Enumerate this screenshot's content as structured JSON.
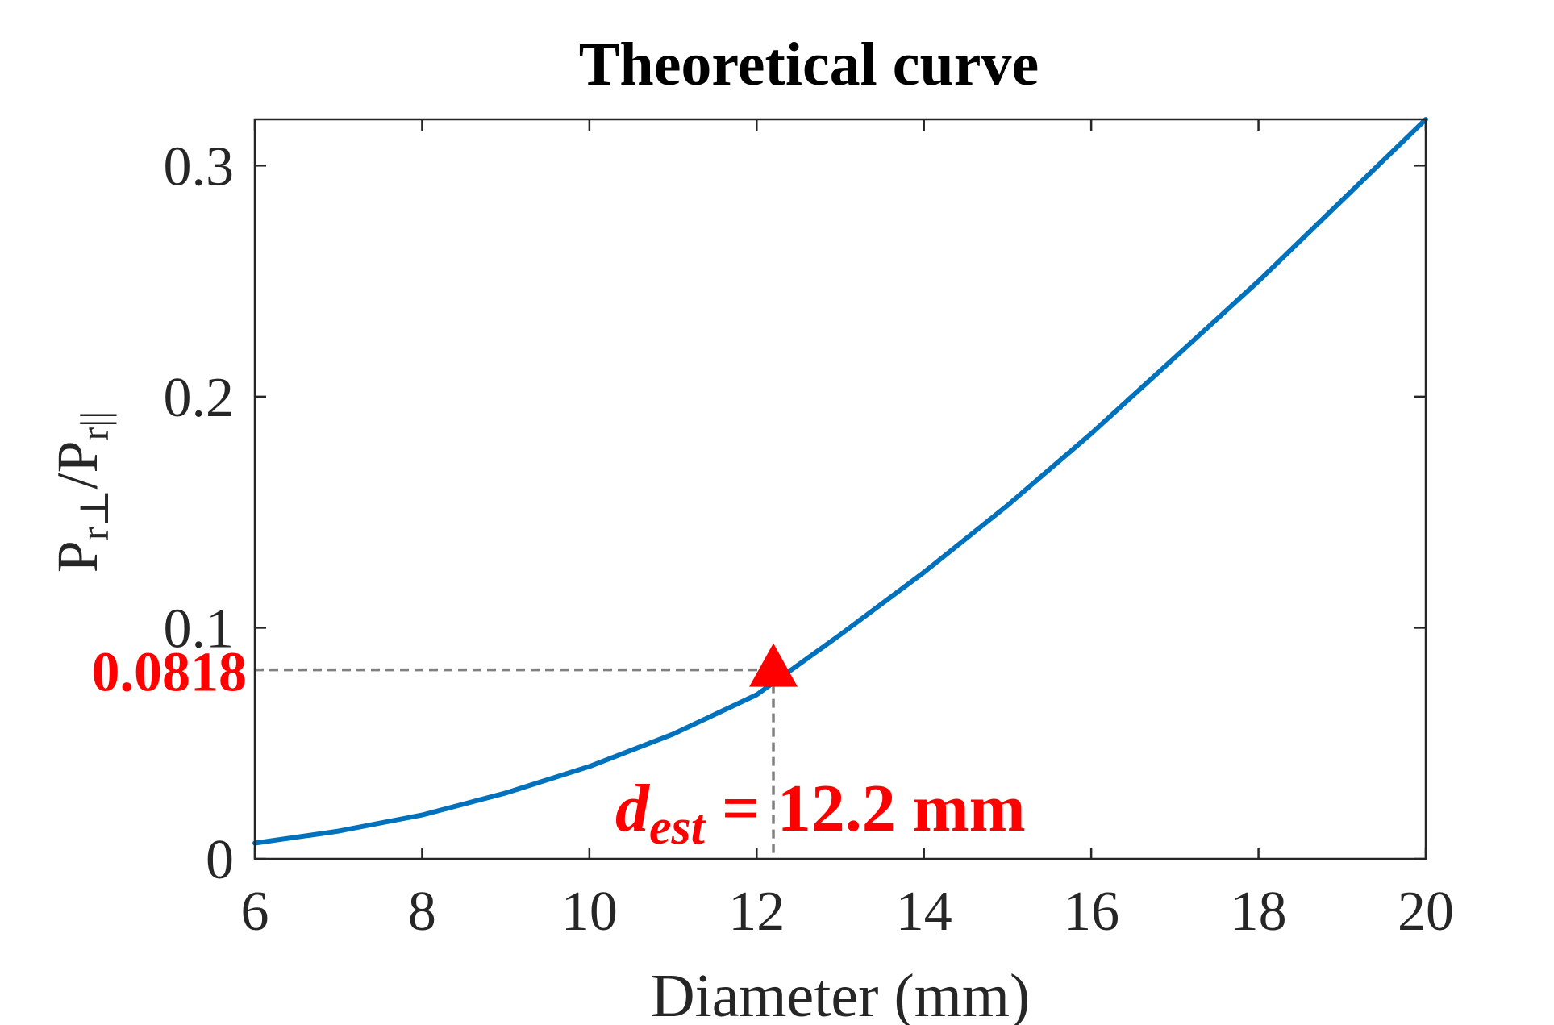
{
  "chart_data": {
    "type": "line",
    "title": "Theoretical curve",
    "xlabel": "Diameter (mm)",
    "ylabel": {
      "p1": "P",
      "sub1": "r⊥",
      "mid": "/P",
      "sub2": "r||"
    },
    "xlim": [
      6,
      20
    ],
    "ylim": [
      0,
      0.32
    ],
    "xticks": [
      6,
      8,
      10,
      12,
      14,
      16,
      18,
      20
    ],
    "yticks": [
      0,
      0.1,
      0.2,
      0.3
    ],
    "xtick_labels": [
      "6",
      "8",
      "10",
      "12",
      "14",
      "16",
      "18",
      "20"
    ],
    "ytick_labels": [
      "0",
      "0.1",
      "0.2",
      "0.3"
    ],
    "grid": false,
    "series": [
      {
        "color": "#0072BD",
        "x": [
          6,
          7,
          8,
          9,
          10,
          11,
          12,
          13,
          14,
          15,
          16,
          17,
          18,
          19,
          20
        ],
        "y": [
          0.0068,
          0.012,
          0.019,
          0.0285,
          0.04,
          0.054,
          0.071,
          0.097,
          0.124,
          0.153,
          0.184,
          0.217,
          0.25,
          0.285,
          0.32
        ]
      }
    ],
    "annotation": {
      "marker": "triangle",
      "color": "#ff0000",
      "x": 12.2,
      "y": 0.0818,
      "y_label": "0.0818",
      "d_label": "d",
      "d_sub": "est",
      "value_label": " = 12.2 mm"
    }
  }
}
